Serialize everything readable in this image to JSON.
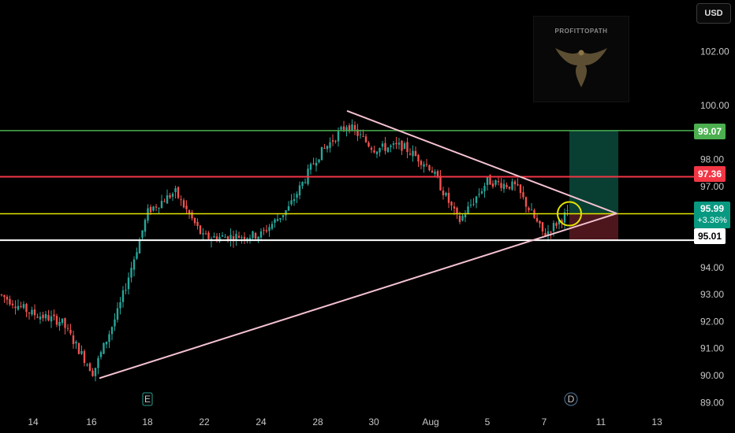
{
  "toolbar": {
    "currency_label": "USD"
  },
  "watermark": {
    "brand": "PROFITTOPATH",
    "icon": "eagle-logo-icon"
  },
  "price_axis": {
    "ticks": [
      "102.00",
      "100.00",
      "98.00",
      "97.00",
      "94.00",
      "93.00",
      "92.00",
      "91.00",
      "90.00",
      "89.00"
    ]
  },
  "time_axis": {
    "ticks": [
      "14",
      "16",
      "18",
      "22",
      "24",
      "28",
      "30",
      "Aug",
      "5",
      "7",
      "11",
      "13"
    ]
  },
  "levels": {
    "resistance_green": {
      "label": "99.07",
      "color": "#4caf50"
    },
    "resistance_red": {
      "label": "97.36",
      "color": "#f23645"
    },
    "current_price": {
      "label": "95.99",
      "change": "+3.36%",
      "color": "#089981",
      "line_color": "#e4e400"
    },
    "support_white": {
      "label": "95.01",
      "color": "#ffffff"
    }
  },
  "event_markers": {
    "earnings": "E",
    "dividend": "D"
  },
  "colors": {
    "up_candle": "#26a69a",
    "down_candle": "#ef5350",
    "triangle": "#f4c2d0",
    "highlight_circle": "#e4e400"
  },
  "chart_data": {
    "type": "candlestick",
    "ylim": [
      88.6,
      103.0
    ],
    "anchors": [
      [
        "Jul 11",
        93.0
      ],
      [
        "Jul 14",
        92.3
      ],
      [
        "Jul 15",
        92.0
      ],
      [
        "Jul 16",
        90.1
      ],
      [
        "Jul 17",
        92.4
      ],
      [
        "Jul 18",
        96.1
      ],
      [
        "Jul 21",
        96.8
      ],
      [
        "Jul 22",
        95.1
      ],
      [
        "Jul 24",
        95.2
      ],
      [
        "Jul 25",
        96.2
      ],
      [
        "Jul 28",
        98.1
      ],
      [
        "Jul 29",
        99.3
      ],
      [
        "Jul 30",
        98.4
      ],
      [
        "Jul 31",
        98.5
      ],
      [
        "Aug 1",
        97.7
      ],
      [
        "Aug 4",
        95.7
      ],
      [
        "Aug 5",
        97.2
      ],
      [
        "Aug 6",
        97.0
      ],
      [
        "Aug 7",
        95.2
      ],
      [
        "Aug 8",
        95.99
      ]
    ],
    "triangle": {
      "upper_line": [
        [
          "Jul 29",
          99.8
        ],
        [
          "Aug 11",
          96.0
        ]
      ],
      "lower_line": [
        [
          "Jul 16",
          89.9
        ],
        [
          "Aug 11",
          96.0
        ]
      ]
    },
    "trade_box": {
      "target": 99.07,
      "entry": 95.99,
      "stop": 95.01
    }
  }
}
